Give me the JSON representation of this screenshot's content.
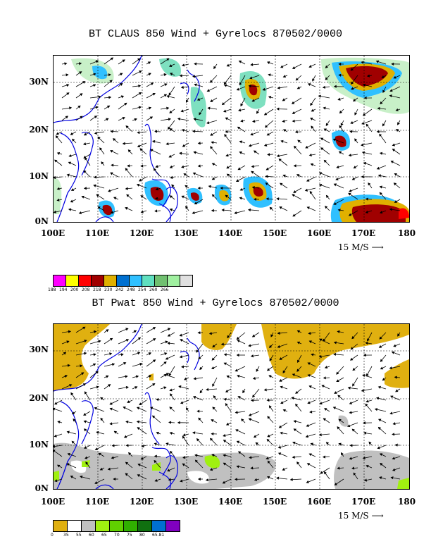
{
  "map1": {
    "title": "BT CLAUS 850 Wind + Gyrelocs 870502/0000",
    "x_labels": [
      "100E",
      "110E",
      "120E",
      "130E",
      "140E",
      "150E",
      "160E",
      "170E",
      "180"
    ],
    "y_labels": [
      "30N",
      "20N",
      "10N",
      "0N"
    ],
    "scale_label": "15 M/S",
    "legend": {
      "colors": [
        "#ff00ff",
        "#ffff00",
        "#ff0000",
        "#a00000",
        "#e0b000",
        "#0070d0",
        "#30c0ff",
        "#60e0c0",
        "#70c070",
        "#a0f0a0",
        "#e0e0e0"
      ],
      "labels": [
        "188",
        "194",
        "200",
        "208",
        "218",
        "230",
        "242",
        "248",
        "254",
        "260",
        "266"
      ]
    }
  },
  "map2": {
    "title": "BT Pwat 850 Wind + Gyrelocs 870502/0000",
    "x_labels": [
      "100E",
      "110E",
      "120E",
      "130E",
      "140E",
      "150E",
      "160E",
      "170E",
      "180"
    ],
    "y_labels": [
      "30N",
      "20N",
      "10N",
      "0N"
    ],
    "scale_label": "15 M/S",
    "legend": {
      "colors": [
        "#e0b010",
        "#ffffff",
        "#c0c0c0",
        "#a0f010",
        "#60d000",
        "#30b000",
        "#107010",
        "#0070d0",
        "#8000c0"
      ],
      "labels": [
        "0",
        "35",
        "55",
        "60",
        "65",
        "70",
        "75",
        "80",
        "65.81"
      ]
    }
  }
}
